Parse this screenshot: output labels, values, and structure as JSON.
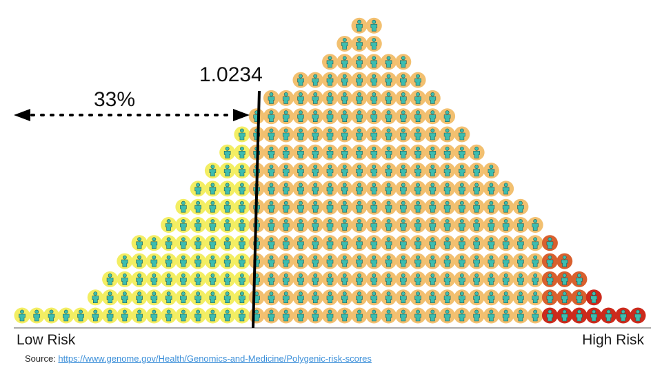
{
  "threshold": {
    "value": "1.0234"
  },
  "percentile": {
    "label": "33%"
  },
  "axis": {
    "left_label": "Low Risk",
    "right_label": "High Risk"
  },
  "source": {
    "prefix": "Source: ",
    "link_text": "https://www.genome.gov/Health/Genomics-and-Medicine/Polygenic-risk-scores"
  },
  "population": {
    "column_heights": [
      1,
      1,
      1,
      1,
      1,
      2,
      3,
      4,
      5,
      5,
      6,
      7,
      8,
      9,
      10,
      11,
      12,
      13,
      13,
      14,
      14,
      15,
      16,
      17,
      17,
      15,
      15,
      14,
      13,
      12,
      11,
      10,
      9,
      8,
      7,
      6,
      5,
      4,
      3,
      2,
      1,
      1,
      1
    ],
    "threshold_fraction": 0.33,
    "colors": {
      "low": "#f3ee63",
      "mid": "#f2c070",
      "high": "#cc2a1c",
      "figure": "#3dbdaf"
    }
  }
}
